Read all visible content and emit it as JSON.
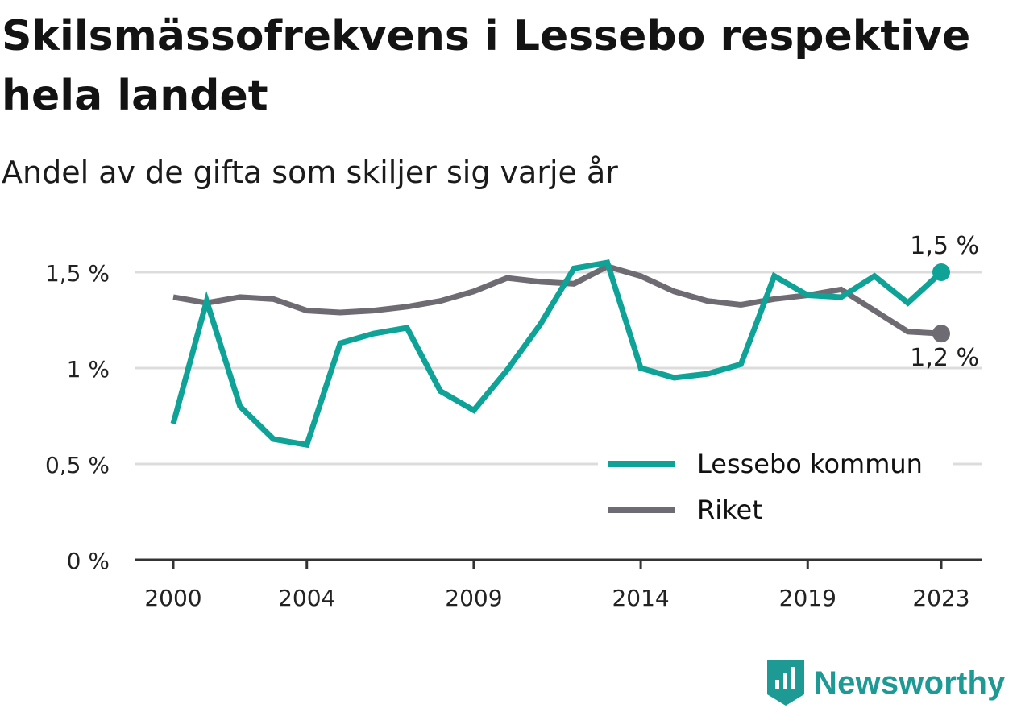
{
  "title": "Skilsmässofrekvens i Lessebo respektive hela landet",
  "subtitle": "Andel av de gifta som skiljer sig varje år",
  "brand": "Newsworthy",
  "colors": {
    "lessebo": "#0fa398",
    "riket": "#6e6c72",
    "grid": "#dcdcdc",
    "axis": "#333333",
    "brand": "#1e9a95"
  },
  "chart_data": {
    "type": "line",
    "x": [
      2000,
      2001,
      2002,
      2003,
      2004,
      2005,
      2006,
      2007,
      2008,
      2009,
      2010,
      2011,
      2012,
      2013,
      2014,
      2015,
      2016,
      2017,
      2018,
      2019,
      2020,
      2021,
      2022,
      2023
    ],
    "series": [
      {
        "name": "Lessebo kommun",
        "values": [
          0.71,
          1.35,
          0.8,
          0.63,
          0.6,
          1.13,
          1.18,
          1.21,
          0.88,
          0.78,
          0.99,
          1.23,
          1.52,
          1.55,
          1.0,
          0.95,
          0.97,
          1.02,
          1.48,
          1.38,
          1.37,
          1.48,
          1.34,
          1.5
        ]
      },
      {
        "name": "Riket",
        "values": [
          1.37,
          1.34,
          1.37,
          1.36,
          1.3,
          1.29,
          1.3,
          1.32,
          1.35,
          1.4,
          1.47,
          1.45,
          1.44,
          1.53,
          1.48,
          1.4,
          1.35,
          1.33,
          1.36,
          1.38,
          1.41,
          1.3,
          1.19,
          1.18
        ]
      }
    ],
    "yticks": [
      0,
      0.5,
      1,
      1.5
    ],
    "ytick_labels": [
      "0 %",
      "0,5 %",
      "1 %",
      "1,5 %"
    ],
    "xticks": [
      2000,
      2004,
      2009,
      2014,
      2019,
      2023
    ],
    "ylim": [
      0,
      1.5
    ],
    "end_labels": [
      "1,5 %",
      "1,2 %"
    ],
    "legend": [
      "Lessebo kommun",
      "Riket"
    ],
    "legend_position": "bottom-right",
    "grid": true
  }
}
